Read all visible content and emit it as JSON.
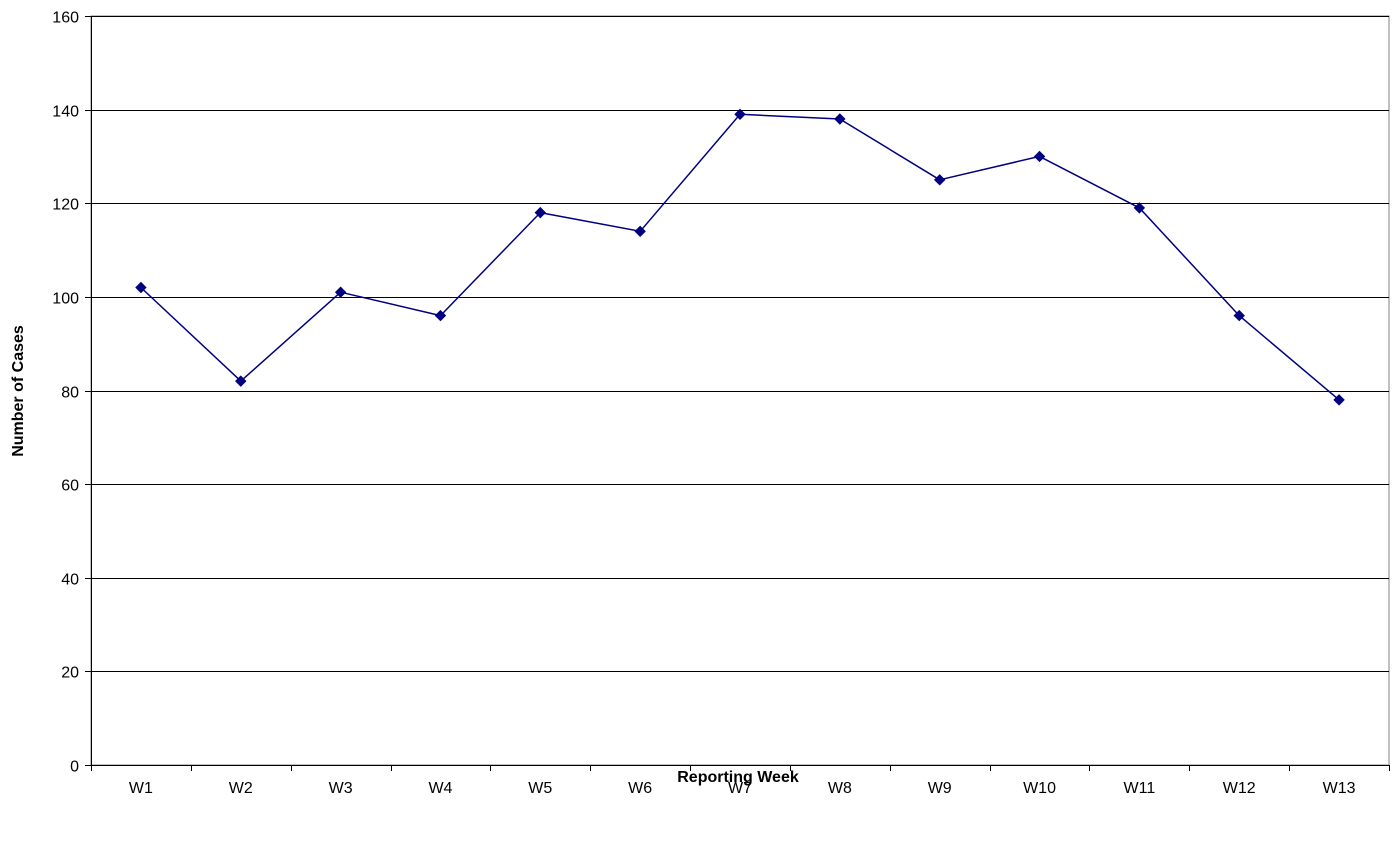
{
  "chart_data": {
    "type": "line",
    "title": "",
    "xlabel": "Reporting Week",
    "ylabel": "Number of Cases",
    "categories": [
      "W1",
      "W2",
      "W3",
      "W4",
      "W5",
      "W6",
      "W7",
      "W8",
      "W9",
      "W10",
      "W11",
      "W12",
      "W13"
    ],
    "series": [
      {
        "values": [
          102,
          82,
          101,
          96,
          118,
          114,
          139,
          138,
          125,
          130,
          119,
          96,
          78
        ],
        "color": "#000080",
        "marker": "diamond"
      }
    ],
    "ylim": [
      0,
      160
    ],
    "yticks": [
      0,
      20,
      40,
      60,
      80,
      100,
      120,
      140,
      160
    ],
    "grid": "horizontal",
    "legend": "none"
  }
}
